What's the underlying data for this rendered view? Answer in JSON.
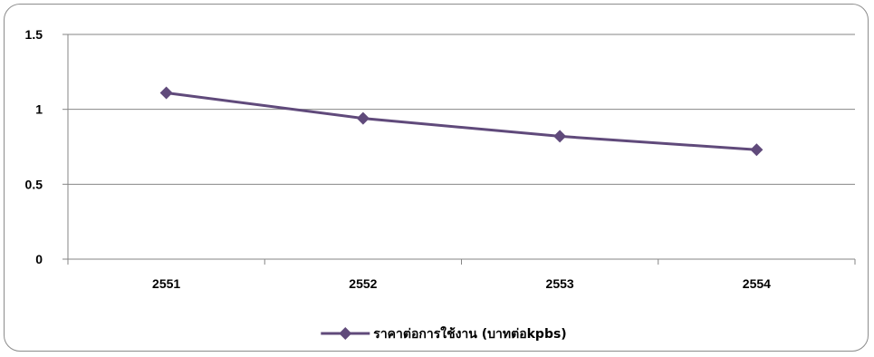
{
  "chart_data": {
    "type": "line",
    "title": "",
    "xlabel": "",
    "ylabel": "",
    "categories": [
      "2551",
      "2552",
      "2553",
      "2554"
    ],
    "series": [
      {
        "name": "ราคาต่อการใช้งาน (บาทต่อkpbs)",
        "values": [
          1.11,
          0.94,
          0.82,
          0.73
        ],
        "color": "#604a7b",
        "marker": "diamond"
      }
    ],
    "ylim": [
      0,
      1.5
    ],
    "yticks": [
      "0",
      "0.5",
      "1",
      "1.5"
    ],
    "grid": true,
    "legend_position": "bottom"
  }
}
